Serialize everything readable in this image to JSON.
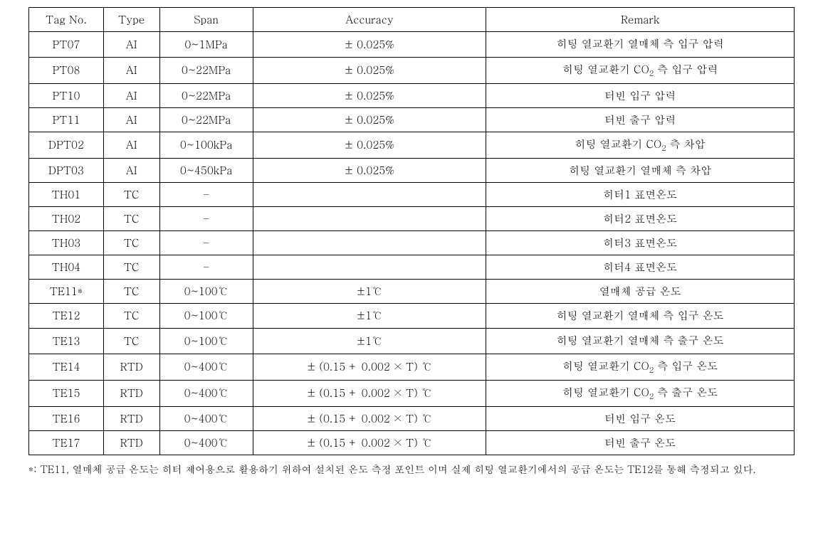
{
  "table": {
    "columns": [
      "Tag No.",
      "Type",
      "Span",
      "Accuracy",
      "Remark"
    ],
    "col_widths": [
      "8%",
      "6%",
      "10%",
      "25%",
      "33%"
    ],
    "header_fontsize": 15,
    "cell_fontsize": 15,
    "border_color": "#000000",
    "background_color": "#ffffff",
    "text_color": "#000000",
    "rows": [
      {
        "tag": "PT07",
        "type": "AI",
        "span": "0~1MPa",
        "accuracy": "± 0.025%",
        "remark": "히팅 열교환기 열매체 측 입구 압력",
        "multiline": true
      },
      {
        "tag": "PT08",
        "type": "AI",
        "span": "0~22MPa",
        "accuracy": "± 0.025%",
        "remark": "히팅 열교환기 CO₂ 측 입구 압력"
      },
      {
        "tag": "PT10",
        "type": "AI",
        "span": "0~22MPa",
        "accuracy": "± 0.025%",
        "remark": "터빈 입구 압력"
      },
      {
        "tag": "PT11",
        "type": "AI",
        "span": "0~22MPa",
        "accuracy": "± 0.025%",
        "remark": "터빈 출구 압력"
      },
      {
        "tag": "DPT02",
        "type": "AI",
        "span": "0~100kPa",
        "accuracy": "± 0.025%",
        "remark": "히팅 열교환기 CO₂ 측 차압"
      },
      {
        "tag": "DPT03",
        "type": "AI",
        "span": "0~450kPa",
        "accuracy": "± 0.025%",
        "remark": "히팅 열교환기 열매체 측 차압"
      },
      {
        "tag": "TH01",
        "type": "TC",
        "span": "–",
        "accuracy": "",
        "remark": "히터1 표면온도"
      },
      {
        "tag": "TH02",
        "type": "TC",
        "span": "–",
        "accuracy": "",
        "remark": "히터2 표면온도"
      },
      {
        "tag": "TH03",
        "type": "TC",
        "span": "–",
        "accuracy": "",
        "remark": "히터3 표면온도"
      },
      {
        "tag": "TH04",
        "type": "TC",
        "span": "–",
        "accuracy": "",
        "remark": "히터4 표면온도"
      },
      {
        "tag": "TE11*",
        "type": "TC",
        "span": "0~100℃",
        "accuracy": "±1℃",
        "remark": "열매체 공급 온도"
      },
      {
        "tag": "TE12",
        "type": "TC",
        "span": "0~100℃",
        "accuracy": "±1℃",
        "remark": "히팅 열교환기 열매체 측 입구 온도",
        "multiline": true
      },
      {
        "tag": "TE13",
        "type": "TC",
        "span": "0~100℃",
        "accuracy": "±1℃",
        "remark": "히팅 열교환기 열매체 측 출구 온도",
        "multiline": true
      },
      {
        "tag": "TE14",
        "type": "RTD",
        "span": "0~400℃",
        "accuracy": "± (0.15 + 0.002 × T) ℃",
        "remark": "히팅 열교환기 CO₂ 측 입구 온도"
      },
      {
        "tag": "TE15",
        "type": "RTD",
        "span": "0~400℃",
        "accuracy": "± (0.15 + 0.002 × T) ℃",
        "remark": "히팅 열교환기 CO₂ 측 출구 온도"
      },
      {
        "tag": "TE16",
        "type": "RTD",
        "span": "0~400℃",
        "accuracy": "± (0.15 + 0.002 × T) ℃",
        "remark": "터빈 입구 온도"
      },
      {
        "tag": "TE17",
        "type": "RTD",
        "span": "0~400℃",
        "accuracy": "± (0.15 + 0.002 × T) ℃",
        "remark": "터빈 출구 온도"
      }
    ]
  },
  "footnote": "*: TE11, 열매체 공급 온도는 히터 제어용으로 활용하기 위하여 설치된 온도 측정 포인트 이며 실제 히팅 열교환기에서의 공급 온도는 TE12를 통해 측정되고 있다."
}
